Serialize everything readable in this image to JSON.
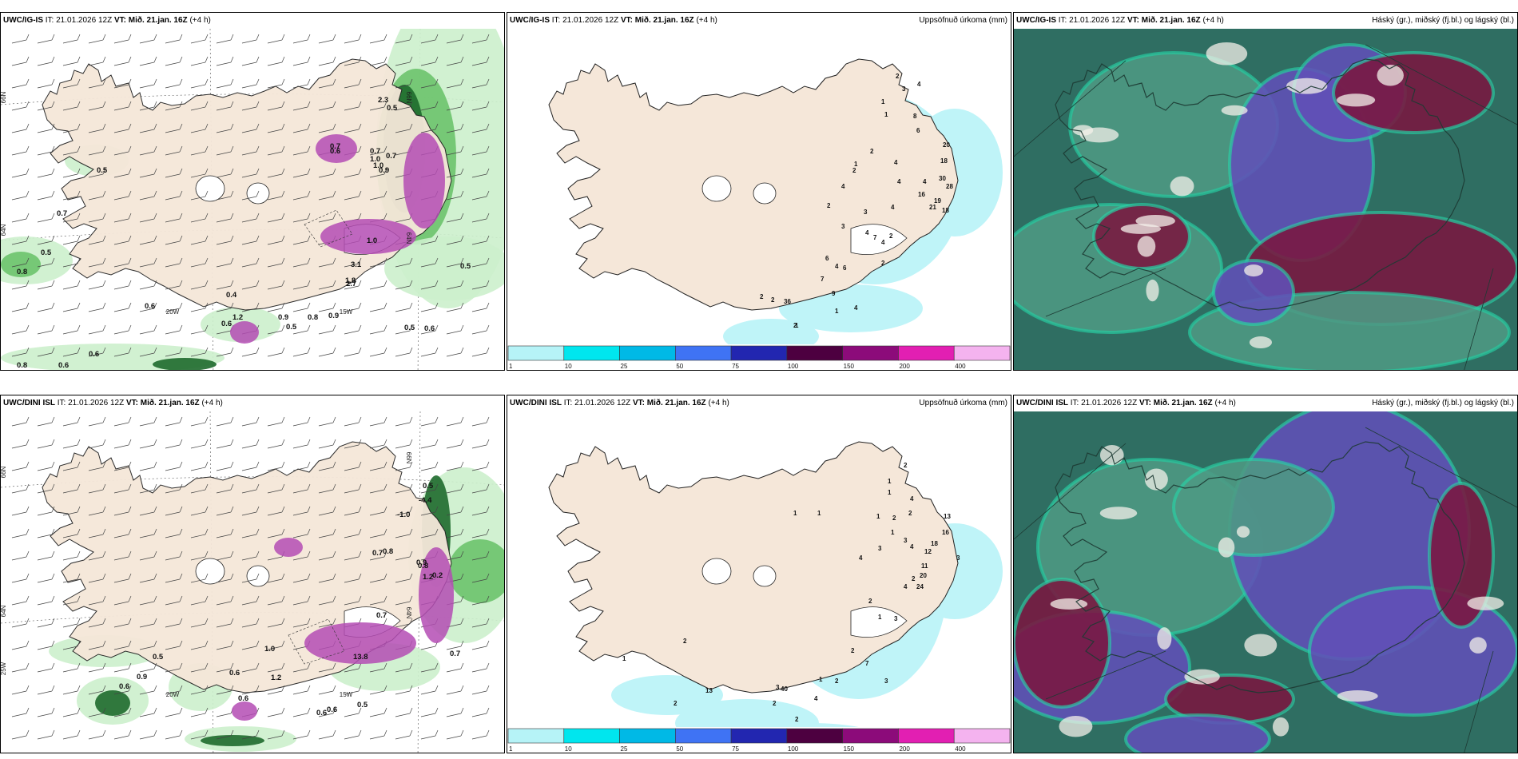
{
  "colors": {
    "land": "#f5e7d9",
    "sea": "#ffffff",
    "precip_light": "#ccefcc",
    "precip_mid": "#6cc36c",
    "precip_dark": "#1e6a2c",
    "precip_purple": "#b44cb4",
    "accum_cyan": "#bff4f8",
    "cloud_teal": "#2f6e62",
    "cloud_mid": "#4e9a84",
    "cloud_blue": "#6150b8",
    "cloud_dark_red": "#7a1740"
  },
  "colorbar": {
    "labels": [
      "1",
      "10",
      "25",
      "50",
      "75",
      "100",
      "150",
      "200",
      "400"
    ],
    "colors": [
      "#b6f3f7",
      "#00e6ee",
      "#00b9e6",
      "#3f73f4",
      "#2226b0",
      "#4d0040",
      "#8c0b7a",
      "#e21fb2",
      "#f4b3ef"
    ]
  },
  "panels": [
    {
      "id": "p1",
      "model": "UWC/IG-IS",
      "it_prefix": "IT: 21.01.2026 12Z",
      "vt_prefix": "VT:",
      "vt_value": "Mið. 21.jan. 16Z",
      "lead": "(+4 h)",
      "right_title": "",
      "kind": "precip",
      "axis_labels": [
        {
          "text": "66N",
          "rot": -90,
          "x": 6,
          "y": 86
        },
        {
          "text": "64N",
          "rot": -90,
          "x": 6,
          "y": 252
        },
        {
          "text": "20W",
          "rot": 0,
          "x": 215,
          "y": 357
        },
        {
          "text": "15W",
          "rot": 0,
          "x": 432,
          "y": 357
        },
        {
          "text": "66N",
          "rot": 90,
          "x": 508,
          "y": 86
        },
        {
          "text": "64N",
          "rot": 90,
          "x": 508,
          "y": 262
        }
      ],
      "values": [
        "0.5",
        "0.7",
        "0.5",
        "0.8",
        "0.6",
        "0.6",
        "0.4",
        "1.2",
        "0.6",
        "0.9",
        "0.8",
        "0.9",
        "0.5",
        "0.5",
        "0.6",
        "0.5",
        "0.6",
        "0.8",
        "0.7",
        "0.7",
        "1.0",
        "1.0",
        "0.9",
        "0.6",
        "0.7",
        "2.3",
        "1.0",
        "3.1",
        "2.7",
        "0.5",
        "1.8"
      ]
    },
    {
      "id": "p2",
      "model": "UWC/IG-IS",
      "it_prefix": "IT: 21.01.2026 12Z",
      "vt_prefix": "VT:",
      "vt_value": "Mið. 21.jan. 16Z",
      "lead": "(+4 h)",
      "right_title": "Uppsöfnuð úrkoma (mm)",
      "kind": "accum",
      "values": [
        "2",
        "4",
        "3",
        "1",
        "1",
        "8",
        "6",
        "20",
        "2",
        "1",
        "4",
        "18",
        "2",
        "4",
        "4",
        "30",
        "16",
        "28",
        "4",
        "19",
        "2",
        "4",
        "21",
        "18",
        "3",
        "3",
        "4",
        "7",
        "2",
        "4",
        "6",
        "4",
        "2",
        "6",
        "7",
        "9",
        "2",
        "36",
        "2",
        "2",
        "4",
        "1",
        "1"
      ]
    },
    {
      "id": "p3",
      "model": "UWC/IG-IS",
      "it_prefix": "IT: 21.01.2026 12Z",
      "vt_prefix": "VT:",
      "vt_value": "Mið. 21.jan. 16Z",
      "lead": "(+4 h)",
      "right_title": "Háský (gr.), miðský (fj.bl.) og lágský (bl.)",
      "kind": "cloud"
    },
    {
      "id": "p4",
      "model": "UWC/DINI ISL",
      "it_prefix": "IT: 21.01.2026 12Z",
      "vt_prefix": "VT:",
      "vt_value": "Mið. 21.jan. 16Z",
      "lead": "(+4 h)",
      "right_title": "",
      "kind": "precip",
      "axis_labels": [
        {
          "text": "66N",
          "rot": -90,
          "x": 6,
          "y": 76
        },
        {
          "text": "64N",
          "rot": -90,
          "x": 6,
          "y": 250
        },
        {
          "text": "25W",
          "rot": -90,
          "x": 6,
          "y": 322
        },
        {
          "text": "20W",
          "rot": 0,
          "x": 215,
          "y": 357
        },
        {
          "text": "15W",
          "rot": 0,
          "x": 432,
          "y": 357
        },
        {
          "text": "66N",
          "rot": 90,
          "x": 508,
          "y": 58
        },
        {
          "text": "64N",
          "rot": 90,
          "x": 508,
          "y": 252
        }
      ],
      "values": [
        "0.5",
        "0.9",
        "0.6",
        "0.6",
        "1.0",
        "0.6",
        "0.5",
        "0.6",
        "0.6",
        "0.7",
        "0.7",
        "0.5",
        "-4.4",
        "-1.0",
        "0.8",
        "0.7",
        "1.2",
        "1.2",
        "0.9",
        "0.2",
        "0.8",
        "13.8"
      ]
    },
    {
      "id": "p5",
      "model": "UWC/DINI ISL",
      "it_prefix": "IT: 21.01.2026 12Z",
      "vt_prefix": "VT:",
      "vt_value": "Mið. 21.jan. 16Z",
      "lead": "(+4 h)",
      "right_title": "Uppsöfnuð úrkoma (mm)",
      "kind": "accum",
      "values": [
        "2",
        "1",
        "1",
        "4",
        "2",
        "1",
        "1",
        "1",
        "13",
        "2",
        "16",
        "1",
        "18",
        "3",
        "4",
        "12",
        "3",
        "3",
        "11",
        "4",
        "20",
        "2",
        "24",
        "4",
        "2",
        "1",
        "3",
        "2",
        "7",
        "3",
        "2",
        "1",
        "3",
        "13",
        "4",
        "2",
        "40",
        "1",
        "1",
        "1",
        "2",
        "2",
        "2"
      ]
    },
    {
      "id": "p6",
      "model": "UWC/DINI ISL",
      "it_prefix": "IT: 21.01.2026 12Z",
      "vt_prefix": "VT:",
      "vt_value": "Mið. 21.jan. 16Z",
      "lead": "(+4 h)",
      "right_title": "Háský (gr.), miðský (fj.bl.) og lágský (bl.)",
      "kind": "cloud"
    }
  ]
}
